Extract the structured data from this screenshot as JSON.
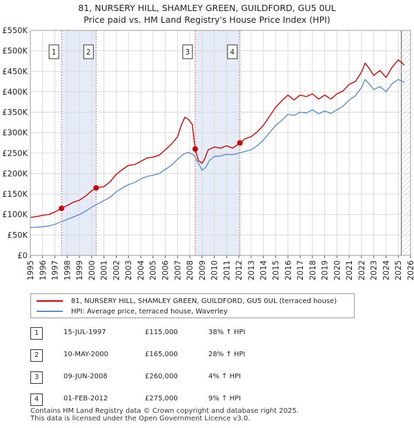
{
  "chart_data": {
    "type": "line",
    "title": "81, NURSERY HILL, SHAMLEY GREEN, GUILDFORD, GU5 0UL",
    "subtitle": "Price paid vs. HM Land Registry's House Price Index (HPI)",
    "xlabel": "",
    "ylabel": "",
    "xlim": [
      1995,
      2026
    ],
    "ylim": [
      0,
      550000
    ],
    "y_ticks": [
      0,
      50000,
      100000,
      150000,
      200000,
      250000,
      300000,
      350000,
      400000,
      450000,
      500000,
      550000
    ],
    "y_tick_labels": [
      "£0",
      "£50K",
      "£100K",
      "£150K",
      "£200K",
      "£250K",
      "£300K",
      "£350K",
      "£400K",
      "£450K",
      "£500K",
      "£550K"
    ],
    "x_ticks": [
      1995,
      1996,
      1997,
      1998,
      1999,
      2000,
      2001,
      2002,
      2003,
      2004,
      2005,
      2006,
      2007,
      2008,
      2009,
      2010,
      2011,
      2012,
      2013,
      2014,
      2015,
      2016,
      2017,
      2018,
      2019,
      2020,
      2021,
      2022,
      2023,
      2024,
      2025,
      2026
    ],
    "grid": true,
    "hatch_from_year": 2025.25,
    "shaded_ranges": [
      [
        1997.54,
        2000.36
      ],
      [
        2008.44,
        2012.09
      ]
    ],
    "series": [
      {
        "name": "81, NURSERY HILL, SHAMLEY GREEN, GUILDFORD, GU5 0UL (terraced house)",
        "color": "#cc0000",
        "x": [
          1995.0,
          1995.5,
          1996.0,
          1996.5,
          1997.0,
          1997.54,
          1998.0,
          1998.5,
          1999.0,
          1999.5,
          2000.0,
          2000.36,
          2001.0,
          2001.5,
          2002.0,
          2002.5,
          2003.0,
          2003.5,
          2004.0,
          2004.5,
          2005.0,
          2005.5,
          2006.0,
          2006.5,
          2007.0,
          2007.3,
          2007.6,
          2007.9,
          2008.2,
          2008.44,
          2008.7,
          2009.0,
          2009.2,
          2009.5,
          2010.0,
          2010.5,
          2011.0,
          2011.5,
          2012.09,
          2012.5,
          2013.0,
          2013.5,
          2014.0,
          2014.5,
          2015.0,
          2015.5,
          2016.0,
          2016.5,
          2017.0,
          2017.5,
          2018.0,
          2018.5,
          2019.0,
          2019.5,
          2020.0,
          2020.5,
          2021.0,
          2021.5,
          2022.0,
          2022.3,
          2022.6,
          2023.0,
          2023.5,
          2024.0,
          2024.5,
          2025.0,
          2025.5
        ],
        "values": [
          93000,
          95000,
          98000,
          100000,
          106000,
          115000,
          122000,
          130000,
          135000,
          145000,
          158000,
          165000,
          168000,
          180000,
          198000,
          210000,
          220000,
          222000,
          230000,
          238000,
          240000,
          245000,
          258000,
          272000,
          290000,
          318000,
          338000,
          332000,
          320000,
          260000,
          232000,
          225000,
          235000,
          258000,
          265000,
          262000,
          268000,
          262000,
          275000,
          285000,
          290000,
          302000,
          318000,
          340000,
          362000,
          378000,
          392000,
          380000,
          392000,
          388000,
          395000,
          382000,
          392000,
          382000,
          395000,
          402000,
          418000,
          425000,
          448000,
          470000,
          458000,
          440000,
          452000,
          435000,
          460000,
          478000,
          465000
        ]
      },
      {
        "name": "HPI: Average price, terraced house, Waverley",
        "color": "#5b8ec9",
        "x": [
          1995.0,
          1995.5,
          1996.0,
          1996.5,
          1997.0,
          1997.5,
          1998.0,
          1998.5,
          1999.0,
          1999.5,
          2000.0,
          2000.5,
          2001.0,
          2001.5,
          2002.0,
          2002.5,
          2003.0,
          2003.5,
          2004.0,
          2004.5,
          2005.0,
          2005.5,
          2006.0,
          2006.5,
          2007.0,
          2007.5,
          2007.9,
          2008.3,
          2008.7,
          2009.0,
          2009.3,
          2009.6,
          2010.0,
          2010.5,
          2011.0,
          2011.5,
          2012.0,
          2012.5,
          2013.0,
          2013.5,
          2014.0,
          2014.5,
          2015.0,
          2015.5,
          2016.0,
          2016.5,
          2017.0,
          2017.5,
          2018.0,
          2018.5,
          2019.0,
          2019.5,
          2020.0,
          2020.5,
          2021.0,
          2021.5,
          2022.0,
          2022.3,
          2022.6,
          2023.0,
          2023.5,
          2024.0,
          2024.5,
          2025.0,
          2025.5
        ],
        "values": [
          68000,
          69000,
          70000,
          72000,
          76000,
          82000,
          88000,
          94000,
          100000,
          108000,
          118000,
          126000,
          134000,
          142000,
          155000,
          165000,
          173000,
          178000,
          187000,
          193000,
          196000,
          200000,
          210000,
          220000,
          235000,
          248000,
          252000,
          246000,
          226000,
          208000,
          215000,
          232000,
          242000,
          243000,
          247000,
          246000,
          250000,
          254000,
          258000,
          268000,
          282000,
          300000,
          318000,
          330000,
          345000,
          342000,
          350000,
          348000,
          356000,
          346000,
          353000,
          347000,
          356000,
          365000,
          380000,
          390000,
          410000,
          430000,
          420000,
          405000,
          413000,
          400000,
          420000,
          430000,
          423000
        ]
      }
    ],
    "sales": [
      {
        "label": "1",
        "x": 1997.54,
        "value": 115000
      },
      {
        "label": "2",
        "x": 2000.36,
        "value": 165000
      },
      {
        "label": "3",
        "x": 2008.44,
        "value": 260000
      },
      {
        "label": "4",
        "x": 2012.09,
        "value": 275000
      }
    ]
  },
  "legend": {
    "property": "81, NURSERY HILL, SHAMLEY GREEN, GUILDFORD, GU5 0UL (terraced house)",
    "hpi": "HPI: Average price, terraced house, Waverley"
  },
  "sales_table": [
    {
      "num": "1",
      "date": "15-JUL-1997",
      "price": "£115,000",
      "pct": "38% ↑ HPI"
    },
    {
      "num": "2",
      "date": "10-MAY-2000",
      "price": "£165,000",
      "pct": "28% ↑ HPI"
    },
    {
      "num": "3",
      "date": "09-JUN-2008",
      "price": "£260,000",
      "pct": "4% ↑ HPI"
    },
    {
      "num": "4",
      "date": "01-FEB-2012",
      "price": "£275,000",
      "pct": "9% ↑ HPI"
    }
  ],
  "footer": {
    "line1": "Contains HM Land Registry data © Crown copyright and database right 2025.",
    "line2": "This data is licensed under the Open Government Licence v3.0."
  }
}
